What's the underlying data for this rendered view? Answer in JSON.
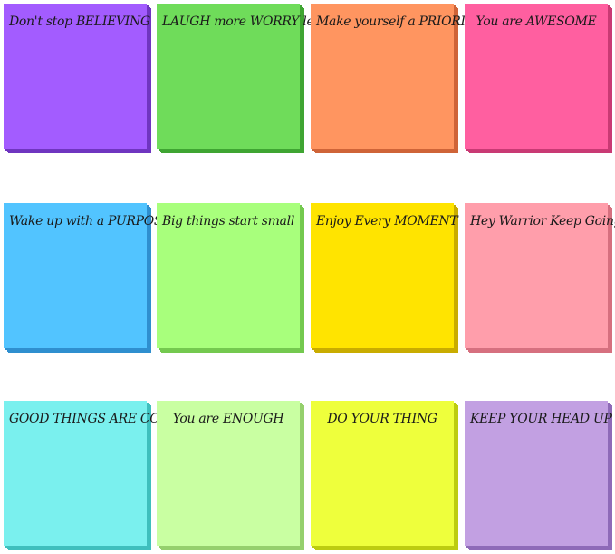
{
  "notes": [
    {
      "text": "Don't stop BELIEVING"
    },
    {
      "text": "LAUGH more WORRY less"
    },
    {
      "text": "Make yourself a PRIORITY"
    },
    {
      "text": "You are AWESOME"
    },
    {
      "text": "Wake up with a PURPOSE"
    },
    {
      "text": "Big things start small"
    },
    {
      "text": "Enjoy Every MOMENT"
    },
    {
      "text": "Hey Warrior Keep Going"
    },
    {
      "text": "GOOD THINGS ARE COMING"
    },
    {
      "text": "You are ENOUGH"
    },
    {
      "text": "DO YOUR THING"
    },
    {
      "text": "KEEP YOUR HEAD UP"
    }
  ]
}
